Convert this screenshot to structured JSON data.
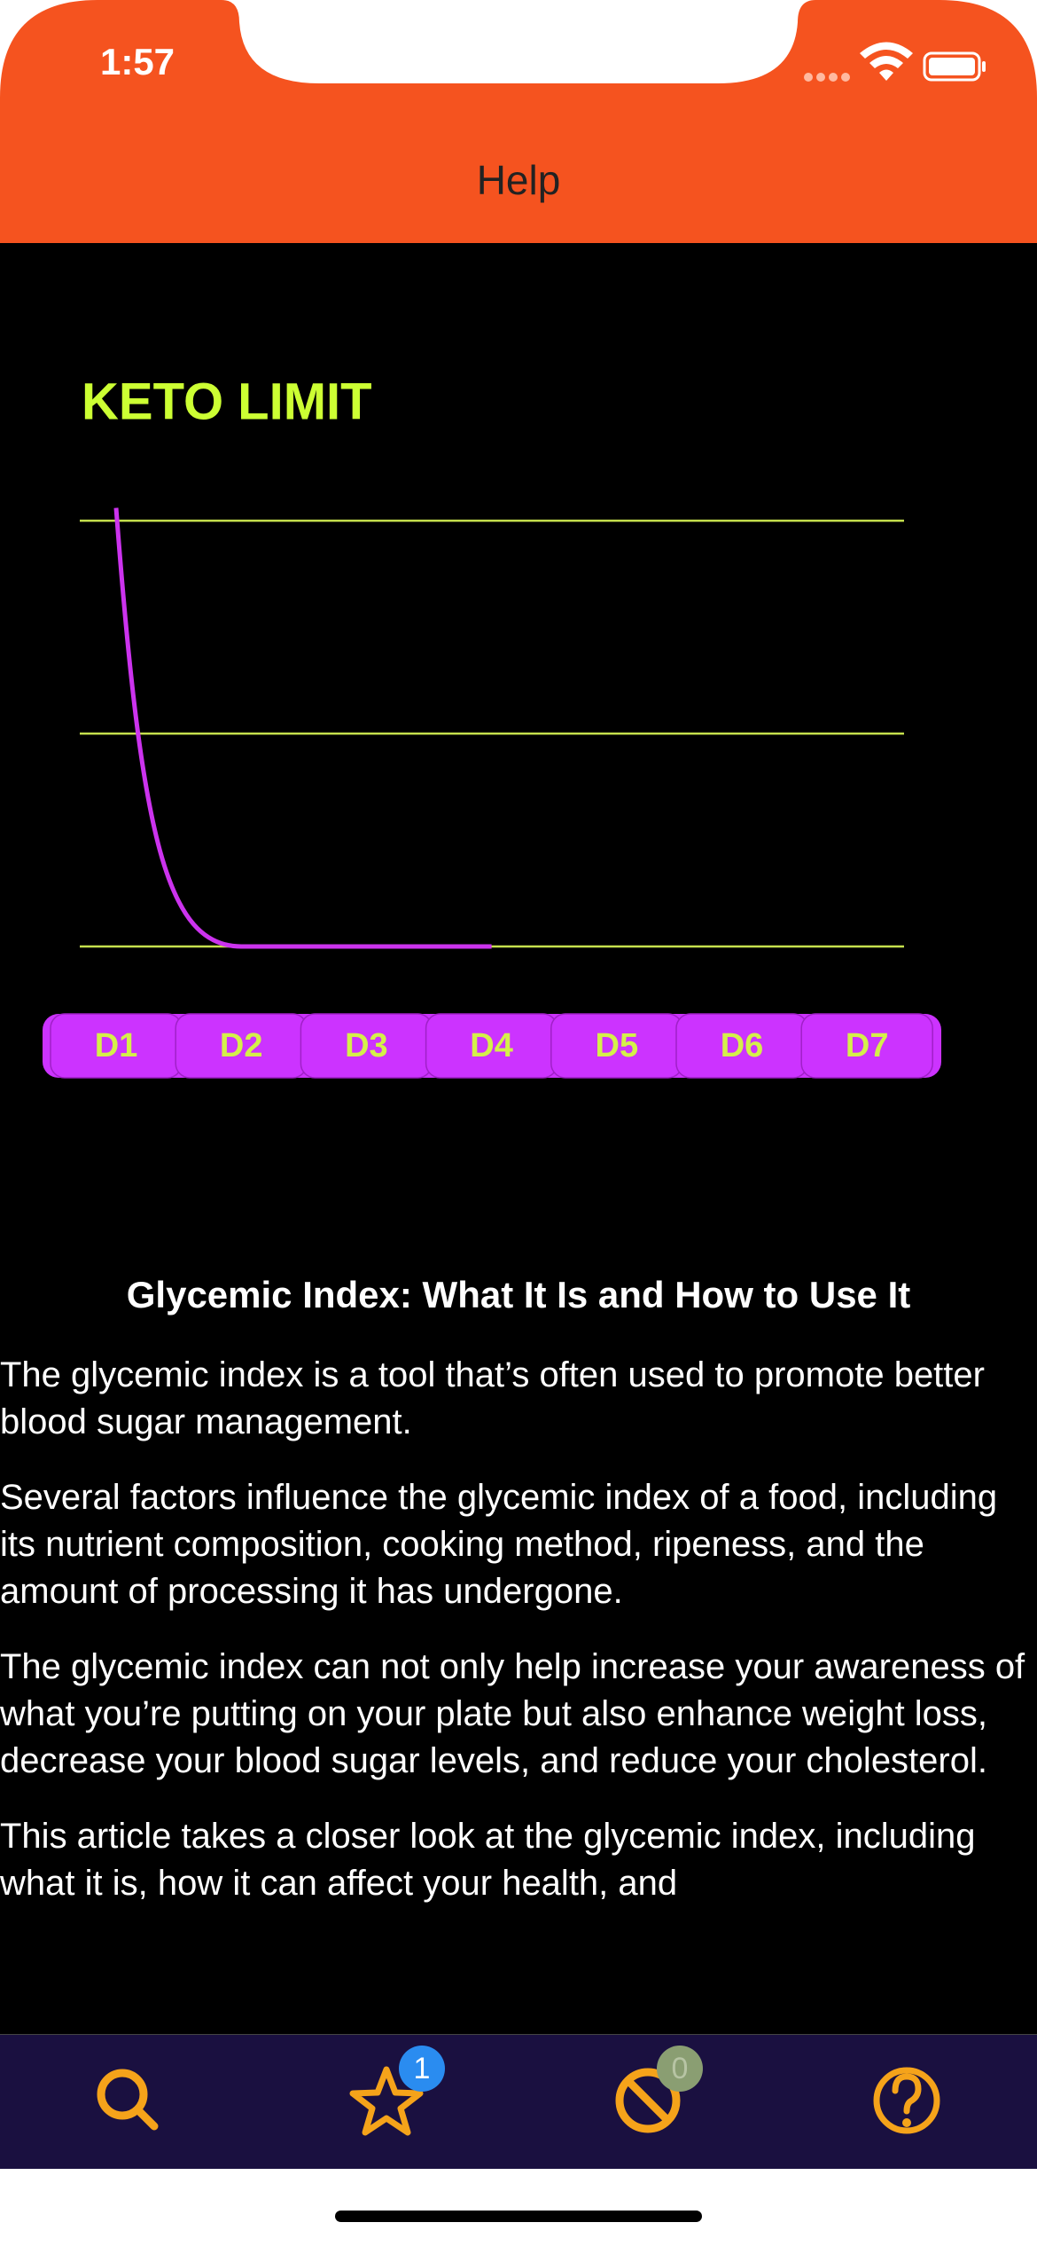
{
  "status_bar": {
    "time": "1:57"
  },
  "nav": {
    "title": "Help"
  },
  "chart_data": {
    "type": "line",
    "title": "KETO LIMIT",
    "categories": [
      "D1",
      "D2",
      "D3",
      "D4",
      "D5",
      "D6",
      "D7"
    ],
    "values": [
      2.06,
      0,
      0,
      0,
      null,
      null,
      null
    ],
    "color": "#CC33EE",
    "ylim": [
      0,
      2
    ],
    "yticks": [
      0,
      1,
      2
    ],
    "grid": true,
    "grid_color": "#C5E04D",
    "pill_color": "#CC33FF",
    "label_color": "#D4F04A"
  },
  "article": {
    "heading": "Glycemic Index: What It Is and How to Use It",
    "paragraphs": [
      "The glycemic index is a tool that’s often used to promote better blood sugar management.",
      "Several factors influence the glycemic index of a food, including its nutrient composition, cooking method, ripeness, and the amount of processing it has undergone.",
      "The glycemic index can not only help increase your awareness of what you’re putting on your plate but also enhance weight loss, decrease your blood sugar levels, and reduce your cholesterol.",
      "This article takes a closer look at the glycemic index, including what it is, how it can affect your health, and"
    ]
  },
  "tab_bar": {
    "badges": [
      1,
      0
    ]
  }
}
